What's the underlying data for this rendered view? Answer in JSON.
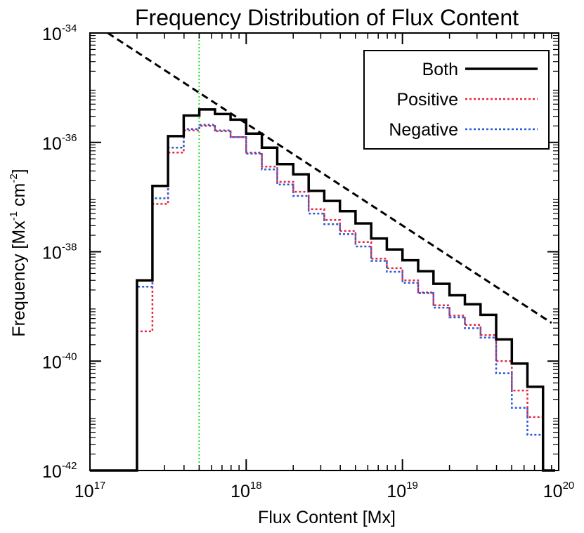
{
  "chart_data": {
    "type": "line",
    "title": "Frequency Distribution of Flux Content",
    "xlabel": "Flux Content [Mx]",
    "ylabel": {
      "base": "Frequency [Mx",
      "sup1": "-1",
      "mid": " cm",
      "sup2": "-2",
      "end": "]"
    },
    "x_scale": "log",
    "y_scale": "log",
    "xlim": [
      1e+17,
      1e+20
    ],
    "ylim": [
      1e-42,
      1e-34
    ],
    "x_ticks": [
      {
        "value": 1e+17,
        "base": "10",
        "exp": "17"
      },
      {
        "value": 1e+18,
        "base": "10",
        "exp": "18"
      },
      {
        "value": 1e+19,
        "base": "10",
        "exp": "19"
      },
      {
        "value": 1e+20,
        "base": "10",
        "exp": "20"
      }
    ],
    "y_ticks": [
      {
        "value": 1e-42,
        "base": "10",
        "exp": "-42"
      },
      {
        "value": 1e-40,
        "base": "10",
        "exp": "-40"
      },
      {
        "value": 1e-38,
        "base": "10",
        "exp": "-38"
      },
      {
        "value": 1e-36,
        "base": "10",
        "exp": "-36"
      },
      {
        "value": 1e-34,
        "base": "10",
        "exp": "-34"
      }
    ],
    "legend_position": "top-right",
    "bin_edges": [
      1e+17,
      2e+17,
      2.51e+17,
      3.16e+17,
      3.98e+17,
      5.01e+17,
      6.31e+17,
      7.94e+17,
      1e+18,
      1.26e+18,
      1.58e+18,
      2e+18,
      2.51e+18,
      3.16e+18,
      3.98e+18,
      5.01e+18,
      6.31e+18,
      7.94e+18,
      1e+19,
      1.26e+19,
      1.58e+19,
      2e+19,
      2.51e+19,
      3.16e+19,
      3.98e+19,
      5.01e+19,
      6.31e+19,
      7.94e+19,
      9.5e+19
    ],
    "series": [
      {
        "name": "Both",
        "color": "#000000",
        "style": "solid",
        "values": [
          1e-42,
          3e-39,
          1.6e-37,
          1.3e-36,
          3.1e-36,
          4e-36,
          3.3e-36,
          2.6e-36,
          1.45e-36,
          8e-37,
          4e-37,
          2.6e-37,
          1.3e-37,
          8.5e-38,
          5.5e-38,
          3.3e-38,
          1.75e-38,
          1.1e-38,
          7e-39,
          4.4e-39,
          2.6e-39,
          1.6e-39,
          1.1e-39,
          7e-40,
          2.5e-40,
          9e-41,
          3.4e-41,
          1e-42
        ]
      },
      {
        "name": "Positive",
        "color": "#e8283c",
        "style": "dotted",
        "values": [
          1e-42,
          3.5e-40,
          7.5e-38,
          6.5e-37,
          1.65e-36,
          2e-36,
          1.6e-36,
          1.25e-36,
          6.5e-37,
          3.6e-37,
          1.9e-37,
          1.25e-37,
          6e-38,
          3.8e-38,
          2.4e-38,
          1.5e-38,
          7.5e-39,
          5e-39,
          3e-39,
          1.8e-39,
          1.05e-39,
          6.8e-40,
          4.6e-40,
          3e-40,
          1e-40,
          2.9e-41,
          9.5e-42,
          1e-42
        ]
      },
      {
        "name": "Negative",
        "color": "#2a5bd7",
        "style": "dotted",
        "values": [
          1e-42,
          2.3e-39,
          9.5e-38,
          8e-37,
          1.75e-36,
          2.1e-36,
          1.65e-36,
          1.25e-36,
          6.2e-37,
          3.2e-37,
          1.7e-37,
          1.05e-37,
          5e-38,
          3.2e-38,
          2.1e-38,
          1.25e-38,
          6.8e-39,
          4.3e-39,
          2.7e-39,
          1.75e-39,
          9.5e-40,
          6.3e-40,
          4e-40,
          2.7e-40,
          6e-41,
          1.4e-41,
          4.5e-42,
          1e-42
        ]
      }
    ],
    "fit_line": {
      "style": "dashed",
      "color": "#000000",
      "points": [
        [
          1.3e+17,
          1e-34
        ],
        [
          9e+19,
          5e-40
        ]
      ]
    },
    "threshold_line": {
      "style": "dotted",
      "color": "#22dd22",
      "x": 5e+17
    }
  }
}
